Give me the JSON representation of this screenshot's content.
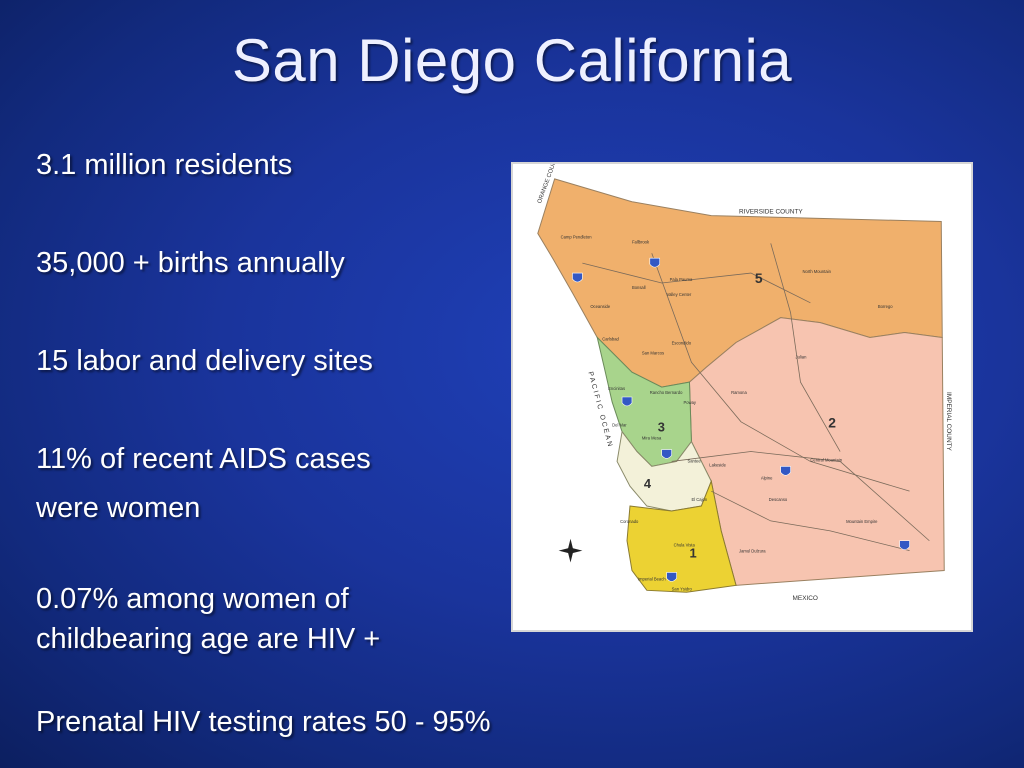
{
  "slide": {
    "title": "San Diego California",
    "bullets": [
      "3.1 million residents",
      "35,000 + births annually",
      "15 labor and delivery sites",
      "11% of recent AIDS cases",
      "were women",
      "0.07% among women of",
      "childbearing age are HIV +",
      "Prenatal HIV testing rates 50 - 95%"
    ]
  },
  "map": {
    "labels": {
      "orange_county": "ORANGE COUNTY",
      "riverside_county": "RIVERSIDE COUNTY",
      "imperial_county": "IMPERIAL COUNTY",
      "pacific_ocean": "PACIFIC OCEAN",
      "mexico": "MEXICO"
    },
    "regions": [
      "1",
      "2",
      "3",
      "4",
      "5"
    ],
    "places": [
      "Camp Pendleton",
      "Fallbrook",
      "Pala Pauma",
      "North Mountain",
      "Bonsall",
      "Valley Center",
      "Oceanside",
      "Carlsbad",
      "San Marcos",
      "Escondido",
      "Ramona",
      "Poway",
      "Julian",
      "Encinitas",
      "Rancho Bernardo",
      "Del Mar",
      "Mira Mesa",
      "Santee",
      "El Cajon",
      "Lakeside",
      "Alpine",
      "Central Mountain",
      "Coronado",
      "Chula Vista",
      "Imperial Beach",
      "San Ysidro",
      "Jamul Dulzura",
      "Mountain Empire",
      "Borrego",
      "Descanso"
    ],
    "colors": {
      "region5": "#f0b06c",
      "region2": "#f7c4b0",
      "region3": "#a8d48c",
      "region4": "#f3f1d9",
      "region1": "#ecd233"
    }
  }
}
